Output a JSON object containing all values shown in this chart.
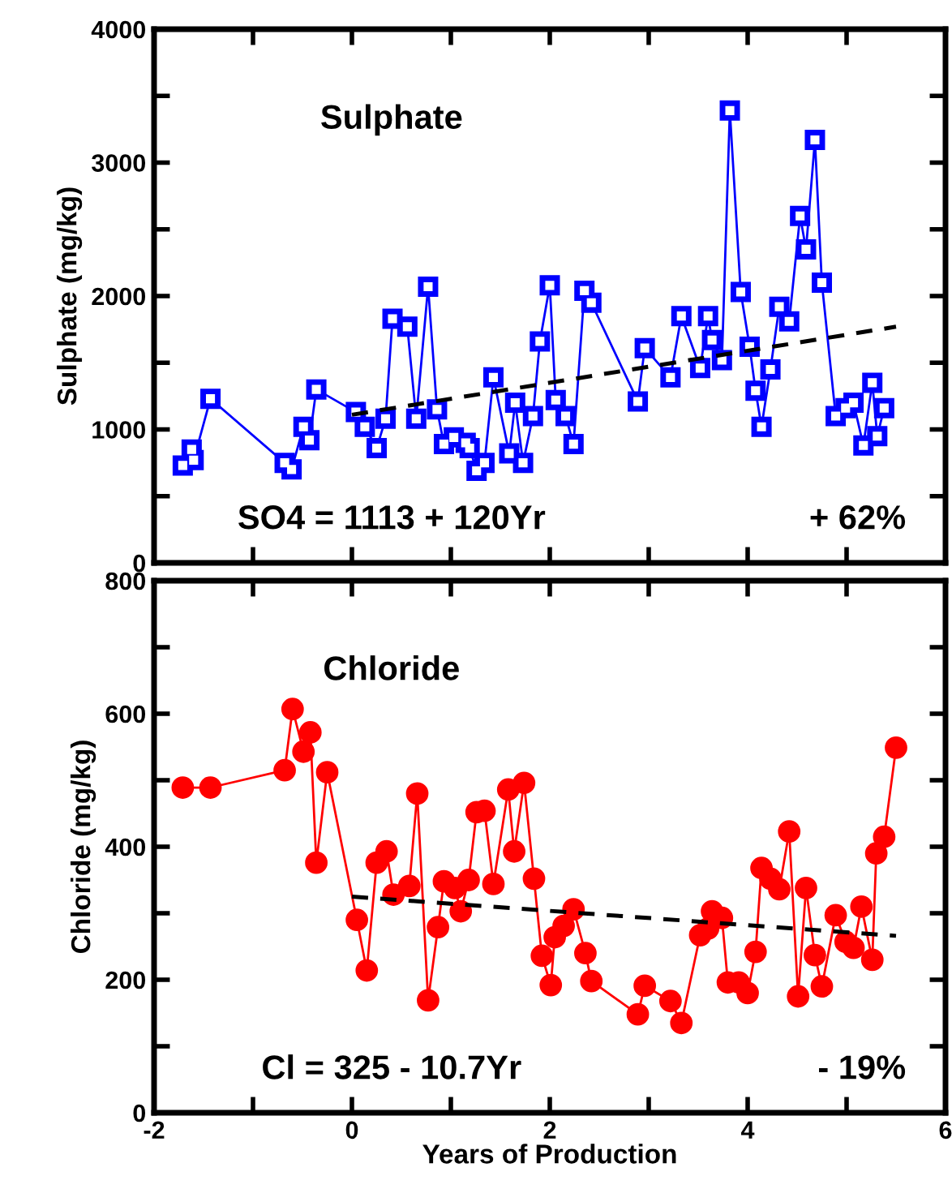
{
  "chart_data": [
    {
      "type": "line",
      "ylabel": "Sulphate (mg/kg)",
      "annotations": [
        "Sulphate",
        "SO4 = 1113 + 120Yr",
        "+ 62%"
      ],
      "xlim": [
        -2,
        6
      ],
      "xticks": [
        {
          "value": -2,
          "label": null
        },
        {
          "value": -1,
          "label": null
        },
        {
          "value": 0,
          "label": null
        },
        {
          "value": 1,
          "label": null
        },
        {
          "value": 2,
          "label": null
        },
        {
          "value": 3,
          "label": null
        },
        {
          "value": 4,
          "label": null
        },
        {
          "value": 5,
          "label": null
        },
        {
          "value": 6,
          "label": null
        }
      ],
      "ylim": [
        0,
        4000
      ],
      "yticks": [
        0,
        {
          "value": 500,
          "label": null
        },
        1000,
        {
          "value": 1500,
          "label": null
        },
        2000,
        {
          "value": 2500,
          "label": null
        },
        3000,
        {
          "value": 3500,
          "label": null
        },
        4000
      ],
      "tick_labels": "y",
      "grid": false,
      "legend": false,
      "series": [
        {
          "color": "#0000ff",
          "marker": "square",
          "line_style": "solid",
          "x": [
            -1.71,
            -1.62,
            -1.6,
            -1.43,
            -0.68,
            -0.61,
            -0.49,
            -0.43,
            -0.36,
            0.04,
            0.13,
            0.25,
            0.34,
            0.41,
            0.56,
            0.65,
            0.77,
            0.86,
            0.93,
            1.03,
            1.15,
            1.19,
            1.26,
            1.34,
            1.43,
            1.59,
            1.65,
            1.73,
            1.83,
            1.9,
            2.0,
            2.06,
            2.16,
            2.24,
            2.35,
            2.42,
            2.89,
            2.96,
            3.22,
            3.33,
            3.52,
            3.6,
            3.64,
            3.74,
            3.82,
            3.93,
            4.02,
            4.08,
            4.14,
            4.23,
            4.32,
            4.42,
            4.53,
            4.59,
            4.68,
            4.75,
            4.89,
            4.99,
            5.07,
            5.17,
            5.26,
            5.31,
            5.38
          ],
          "values": [
            730,
            850,
            770,
            1230,
            750,
            700,
            1020,
            920,
            1300,
            1130,
            1020,
            860,
            1080,
            1830,
            1770,
            1080,
            2070,
            1150,
            890,
            940,
            900,
            860,
            690,
            750,
            1390,
            820,
            1200,
            750,
            1100,
            1660,
            2080,
            1220,
            1100,
            890,
            2040,
            1950,
            1210,
            1610,
            1390,
            1850,
            1460,
            1850,
            1670,
            1520,
            3390,
            2030,
            1620,
            1290,
            1020,
            1450,
            1920,
            1810,
            2600,
            2350,
            3170,
            2100,
            1100,
            1160,
            1200,
            880,
            1350,
            950,
            1160
          ]
        },
        {
          "color": "#000000",
          "marker": "none",
          "line_style": "dashed",
          "x": [
            0,
            5.5
          ],
          "values": [
            1110,
            1770
          ]
        }
      ]
    },
    {
      "type": "line",
      "xlabel": "Years of Production",
      "ylabel": "Chloride (mg/kg)",
      "annotations": [
        "Chloride",
        "Cl = 325 - 10.7Yr",
        "- 19%"
      ],
      "xlim": [
        -2,
        6
      ],
      "xticks": [
        {
          "value": -2,
          "label": "-2"
        },
        {
          "value": -1,
          "label": null
        },
        {
          "value": 0,
          "label": "0"
        },
        {
          "value": 1,
          "label": null
        },
        {
          "value": 2,
          "label": "2"
        },
        {
          "value": 3,
          "label": null
        },
        {
          "value": 4,
          "label": "4"
        },
        {
          "value": 5,
          "label": null
        },
        {
          "value": 6,
          "label": "6"
        }
      ],
      "ylim": [
        0,
        800
      ],
      "yticks": [
        0,
        {
          "value": 100,
          "label": null
        },
        200,
        {
          "value": 300,
          "label": null
        },
        400,
        {
          "value": 500,
          "label": null
        },
        600,
        {
          "value": 700,
          "label": null
        },
        800
      ],
      "grid": false,
      "legend": false,
      "series": [
        {
          "color": "#ff0000",
          "marker": "circle",
          "line_style": "solid",
          "x": [
            -1.71,
            -1.43,
            -0.68,
            -0.6,
            -0.49,
            -0.42,
            -0.36,
            -0.25,
            0.05,
            0.15,
            0.25,
            0.35,
            0.42,
            0.58,
            0.66,
            0.77,
            0.87,
            0.93,
            1.04,
            1.1,
            1.18,
            1.26,
            1.34,
            1.43,
            1.58,
            1.64,
            1.74,
            1.84,
            1.92,
            2.01,
            2.05,
            2.14,
            2.24,
            2.36,
            2.42,
            2.89,
            2.96,
            3.22,
            3.33,
            3.52,
            3.6,
            3.64,
            3.74,
            3.8,
            3.91,
            4.0,
            4.08,
            4.14,
            4.23,
            4.32,
            4.42,
            4.51,
            4.59,
            4.68,
            4.75,
            4.89,
            4.99,
            5.07,
            5.15,
            5.26,
            5.3,
            5.38,
            5.5
          ],
          "values": [
            489,
            489,
            515,
            607,
            543,
            572,
            376,
            512,
            290,
            214,
            376,
            393,
            328,
            341,
            480,
            169,
            279,
            348,
            338,
            303,
            350,
            452,
            454,
            344,
            486,
            393,
            496,
            352,
            236,
            192,
            264,
            281,
            306,
            240,
            198,
            148,
            191,
            168,
            135,
            267,
            277,
            303,
            293,
            196,
            196,
            180,
            242,
            368,
            352,
            336,
            423,
            175,
            338,
            237,
            190,
            297,
            257,
            248,
            310,
            230,
            390,
            415,
            549
          ]
        },
        {
          "color": "#000000",
          "marker": "none",
          "line_style": "dashed",
          "x": [
            0,
            5.5
          ],
          "values": [
            325,
            266
          ]
        }
      ]
    }
  ]
}
